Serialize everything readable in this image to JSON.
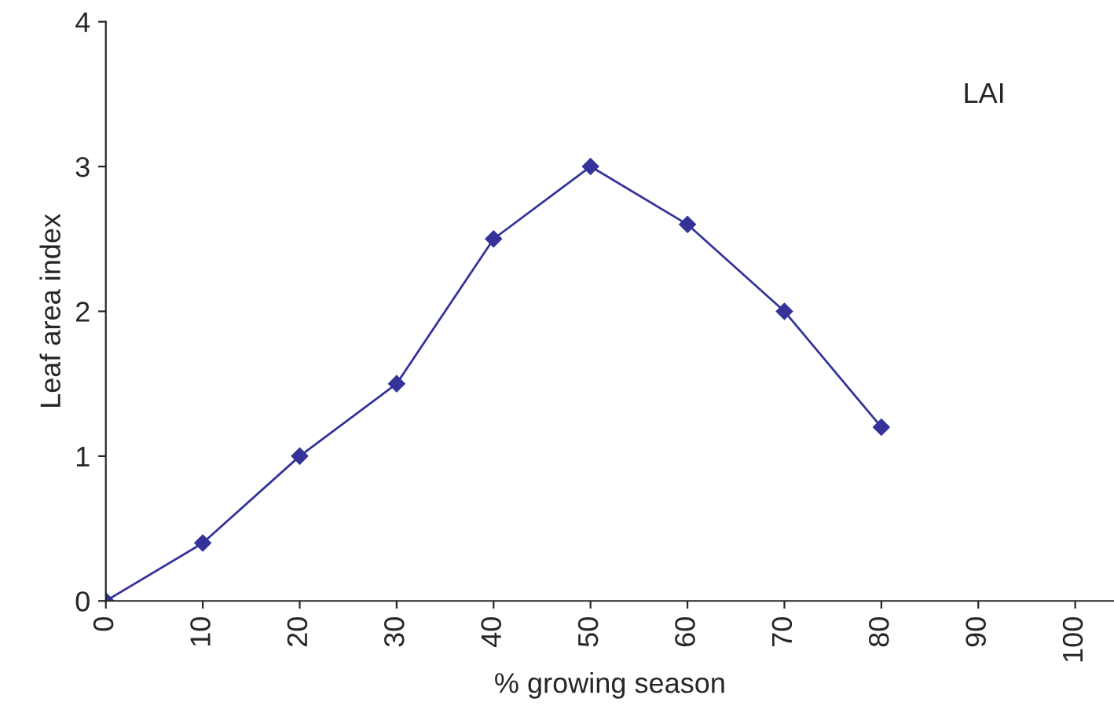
{
  "chart_data": {
    "type": "line",
    "xlabel": "% growing season",
    "ylabel": "Leaf area index",
    "annotations": [
      "LAI"
    ],
    "x": [
      0,
      10,
      20,
      30,
      40,
      50,
      60,
      70,
      80
    ],
    "series": [
      {
        "color": "#333399",
        "values": [
          0,
          0.4,
          1.0,
          1.5,
          2.5,
          3.0,
          2.6,
          2.0,
          1.2
        ]
      }
    ],
    "xlim": [
      0,
      104
    ],
    "xticks": [
      0,
      10,
      20,
      30,
      40,
      50,
      60,
      70,
      80,
      90,
      100
    ],
    "ylim": [
      0,
      4
    ],
    "yticks": [
      0,
      1,
      2,
      3,
      4
    ],
    "marker": "diamond",
    "line_style": "solid",
    "grid": false
  }
}
